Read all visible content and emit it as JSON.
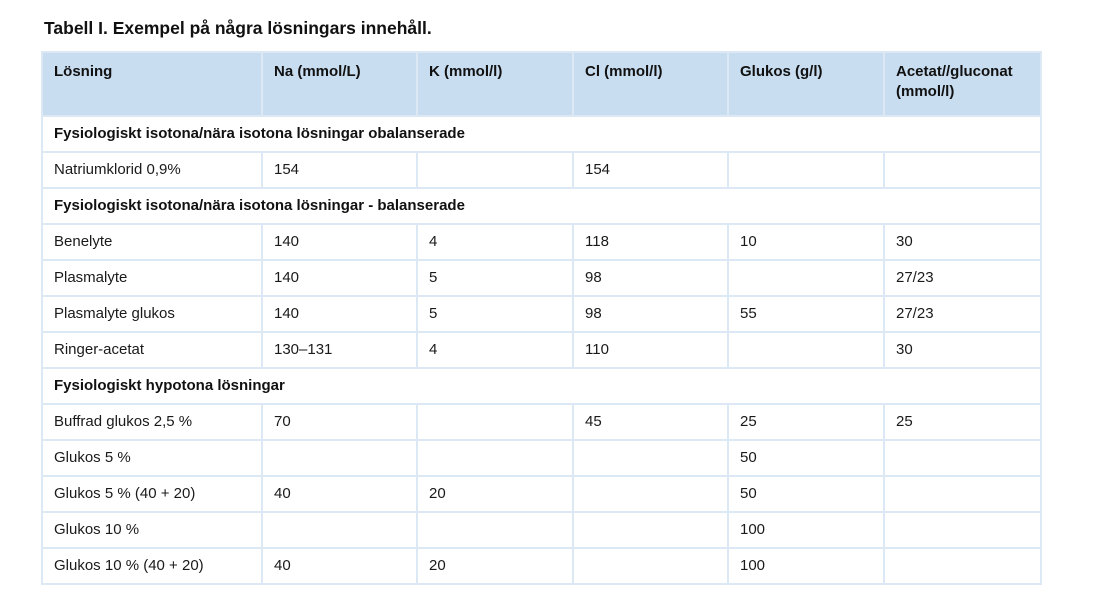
{
  "caption": "Tabell I. Exempel på några lösningars innehåll.",
  "headers": [
    "Lösning",
    "Na (mmol/L)",
    "K (mmol/l)",
    "Cl (mmol/l)",
    "Glukos (g/l)",
    "Acetat//gluconat (mmol/l)"
  ],
  "rows": [
    {
      "section": "Fysiologiskt isotona/nära isotona lösningar  obalanserade"
    },
    {
      "cells": [
        "Natriumklorid 0,9%",
        "154",
        "",
        "154",
        "",
        ""
      ]
    },
    {
      "section": "Fysiologiskt isotona/nära isotona lösningar - balanserade"
    },
    {
      "cells": [
        "Benelyte",
        "140",
        "4",
        "118",
        "10",
        "30"
      ]
    },
    {
      "cells": [
        "Plasmalyte",
        "140",
        "5",
        "98",
        "",
        "27/23"
      ]
    },
    {
      "cells": [
        "Plasmalyte glukos",
        "140",
        "5",
        "98",
        "55",
        "27/23"
      ]
    },
    {
      "cells": [
        "Ringer-acetat",
        "130–131",
        "4",
        "110",
        "",
        "30"
      ]
    },
    {
      "section": "Fysiologiskt hypotona lösningar"
    },
    {
      "cells": [
        "Buffrad glukos 2,5 %",
        "70",
        "",
        "45",
        "25",
        "25"
      ]
    },
    {
      "cells": [
        "Glukos 5 %",
        "",
        "",
        "",
        "50",
        ""
      ]
    },
    {
      "cells": [
        "Glukos 5 % (40 + 20)",
        "40",
        "20",
        "",
        "50",
        ""
      ]
    },
    {
      "cells": [
        "Glukos 10 %",
        "",
        "",
        "",
        "100",
        ""
      ]
    },
    {
      "cells": [
        "Glukos 10 % (40 + 20)",
        "40",
        "20",
        "",
        "100",
        ""
      ]
    }
  ]
}
